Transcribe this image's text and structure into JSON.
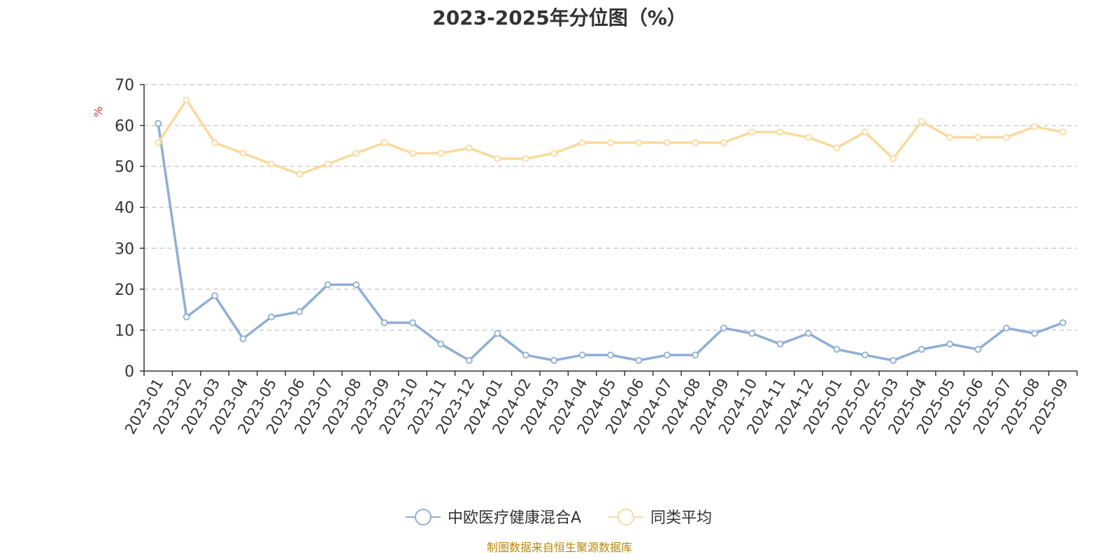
{
  "chart_data": {
    "type": "line",
    "title": "2023-2025年分位图（%）",
    "ylabel": "%",
    "ylim": [
      0,
      70
    ],
    "yticks": [
      0,
      10,
      20,
      30,
      40,
      50,
      60,
      70
    ],
    "grid": true,
    "legend_position": "bottom",
    "categories": [
      "2023-01",
      "2023-02",
      "2023-03",
      "2023-04",
      "2023-05",
      "2023-06",
      "2023-07",
      "2023-08",
      "2023-09",
      "2023-10",
      "2023-11",
      "2023-12",
      "2024-01",
      "2024-02",
      "2024-03",
      "2024-04",
      "2024-05",
      "2024-06",
      "2024-07",
      "2024-08",
      "2024-09",
      "2024-10",
      "2024-11",
      "2024-12",
      "2025-01",
      "2025-02",
      "2025-03",
      "2025-04",
      "2025-05",
      "2025-06",
      "2025-07",
      "2025-08",
      "2025-09"
    ],
    "series": [
      {
        "name": "中欧医疗健康混合A",
        "color": "#8eaed8",
        "values": [
          60.5,
          13.2,
          18.4,
          7.9,
          13.2,
          14.5,
          21.1,
          21.1,
          11.8,
          11.8,
          6.6,
          2.6,
          9.2,
          3.9,
          2.6,
          3.9,
          3.9,
          2.6,
          3.9,
          3.9,
          10.5,
          9.2,
          6.6,
          9.2,
          5.3,
          3.9,
          2.6,
          5.3,
          6.6,
          5.3,
          10.5,
          9.2,
          11.8
        ]
      },
      {
        "name": "同类平均",
        "color": "#fbd99a",
        "values": [
          55.8,
          66.2,
          55.8,
          53.2,
          50.6,
          48.1,
          50.6,
          53.2,
          55.8,
          53.2,
          53.2,
          54.5,
          51.9,
          51.9,
          53.2,
          55.8,
          55.8,
          55.8,
          55.8,
          55.8,
          55.8,
          58.4,
          58.4,
          57.1,
          54.5,
          58.4,
          51.9,
          61.0,
          57.1,
          57.1,
          57.1,
          59.7,
          58.4
        ]
      }
    ]
  },
  "source_note": "制图数据来自恒生聚源数据库"
}
